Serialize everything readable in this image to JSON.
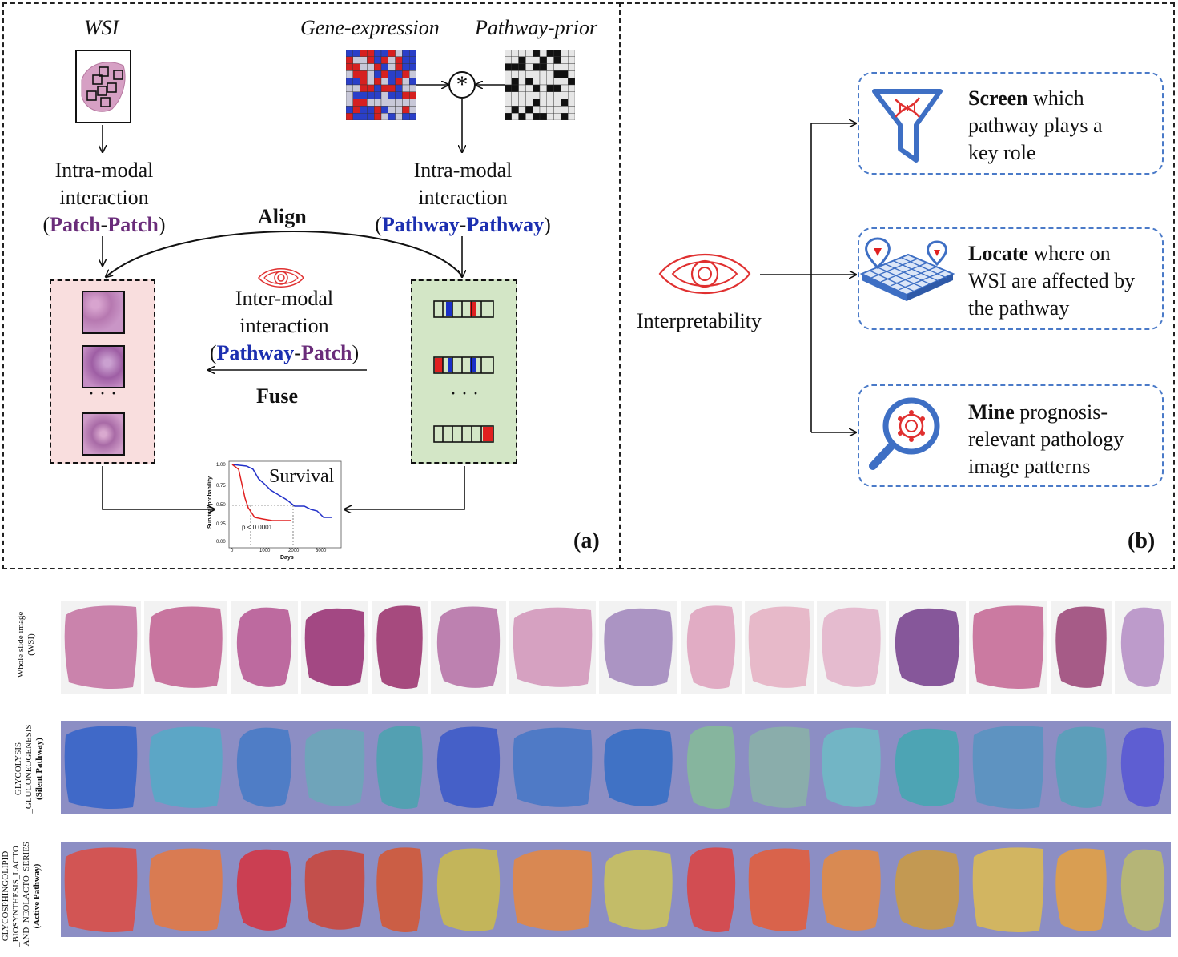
{
  "panel_a": {
    "wsi_title": "WSI",
    "gene_title": "Gene-expression",
    "pathway_title": "Pathway-prior",
    "star_symbol": "*",
    "intra_left_line1": "Intra-modal",
    "intra_left_line2": "interaction",
    "intra_left_open": "(",
    "intra_left_a": "Patch",
    "intra_left_dash": "-",
    "intra_left_b": "Patch",
    "intra_left_close": ")",
    "intra_right_line1": "Intra-modal",
    "intra_right_line2": "interaction",
    "intra_right_open": "(",
    "intra_right_a": "Pathway",
    "intra_right_dash": "-",
    "intra_right_b": "Pathway",
    "intra_right_close": ")",
    "align_label": "Align",
    "inter_line1": "Inter-modal",
    "inter_line2": "interaction",
    "inter_open": "(",
    "inter_a": "Pathway",
    "inter_dash": "-",
    "inter_b": "Patch",
    "inter_close": ")",
    "fuse_label": "Fuse",
    "ellipsis": "· · ·",
    "survival_label": "Survival",
    "km_ylabel": "Survival probability",
    "km_xlabel": "Days",
    "km_pvalue": "p < 0.0001",
    "km_yticks": [
      "0.00",
      "0.25",
      "0.50",
      "0.75",
      "1.00"
    ],
    "km_xticks": [
      "0",
      "1000",
      "2000",
      "3000"
    ],
    "panel_label": "(a)"
  },
  "panel_b": {
    "interpretability_label": "Interpretability",
    "items": [
      {
        "bold": "Screen",
        "rest_line1": " which",
        "line2": "pathway plays a",
        "line3": "key role",
        "icon": "funnel-dna-icon"
      },
      {
        "bold": "Locate",
        "rest_line1": " where on",
        "line2": "WSI are affected by",
        "line3": "the pathway",
        "icon": "map-grid-pin-icon"
      },
      {
        "bold": "Mine",
        "rest_line1": " prognosis-",
        "line2": "relevant pathology",
        "line3": "image patterns",
        "icon": "magnifier-cell-icon"
      }
    ],
    "panel_label": "(b)"
  },
  "bottom": {
    "row1_label_line1": "Whole slide image",
    "row1_label_line2": "(WSI)",
    "row2_label_line1": "GLYCOLYSIS",
    "row2_label_line2": "_GLUCONEOGENESIS",
    "row2_label_line3": "(Silent Pathway)",
    "row3_label_line1": "GLYCOSPHINGOLIPID",
    "row3_label_line2": "_BIOSYNTHESIS_LACTO",
    "row3_label_line3": "_AND_NEOLACTO_SERIES",
    "row3_label_line4": "(Active Pathway)"
  },
  "colors": {
    "wsi_bg": "#f2f2f2",
    "tissue_pink": "#c77aa6",
    "heat_bg": "#8c8ec4",
    "pink_box": "#f9dede",
    "green_box": "#d3e6c6",
    "eye_red": "#e03030",
    "icon_blue": "#3e6fc4",
    "km_blue": "#2230c8",
    "km_red": "#e02020"
  }
}
